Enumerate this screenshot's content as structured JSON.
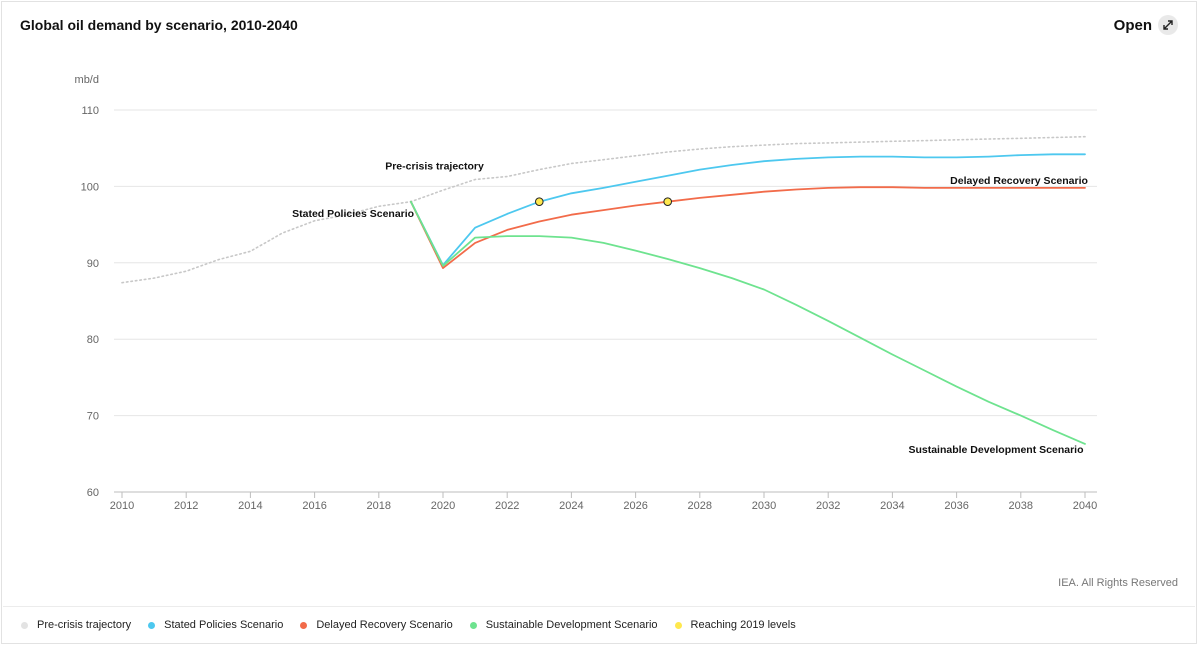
{
  "header": {
    "title": "Global oil demand by scenario, 2010-2040",
    "open_label": "Open",
    "open_icon": "expand-arrows-icon"
  },
  "credit": "IEA. All Rights Reserved",
  "chart_data": {
    "type": "line",
    "title": "Global oil demand by scenario, 2010-2040",
    "ylabel": "mb/d",
    "xlabel": "",
    "xlim": [
      2010,
      2040
    ],
    "ylim": [
      60,
      110
    ],
    "xticks": [
      2010,
      2012,
      2014,
      2016,
      2018,
      2020,
      2022,
      2024,
      2026,
      2028,
      2030,
      2032,
      2034,
      2036,
      2038,
      2040
    ],
    "yticks": [
      60,
      70,
      80,
      90,
      100,
      110
    ],
    "grid": "horizontal",
    "legend_position": "bottom",
    "series": [
      {
        "name": "Pre-crisis trajectory",
        "color": "#c8c8c8",
        "style": "dotted",
        "x": [
          2010,
          2011,
          2012,
          2013,
          2014,
          2015,
          2016,
          2017,
          2018,
          2019,
          2020,
          2021,
          2022,
          2023,
          2024,
          2025,
          2026,
          2027,
          2028,
          2029,
          2030,
          2031,
          2032,
          2033,
          2034,
          2035,
          2036,
          2037,
          2038,
          2039,
          2040
        ],
        "y": [
          87.4,
          88.0,
          88.9,
          90.4,
          91.5,
          93.9,
          95.5,
          96.3,
          97.4,
          98.0,
          99.5,
          100.9,
          101.3,
          102.2,
          103.0,
          103.5,
          104.0,
          104.5,
          104.9,
          105.2,
          105.4,
          105.6,
          105.7,
          105.8,
          105.9,
          106.0,
          106.1,
          106.2,
          106.3,
          106.4,
          106.5
        ]
      },
      {
        "name": "Stated Policies Scenario",
        "color": "#4dc8ef",
        "style": "solid",
        "x": [
          2019,
          2020,
          2021,
          2022,
          2023,
          2024,
          2025,
          2026,
          2027,
          2028,
          2029,
          2030,
          2031,
          2032,
          2033,
          2034,
          2035,
          2036,
          2037,
          2038,
          2039,
          2040
        ],
        "y": [
          98.0,
          89.7,
          94.6,
          96.4,
          98.0,
          99.1,
          99.8,
          100.6,
          101.4,
          102.2,
          102.8,
          103.3,
          103.6,
          103.8,
          103.9,
          103.9,
          103.8,
          103.8,
          103.9,
          104.1,
          104.2,
          104.2
        ]
      },
      {
        "name": "Delayed Recovery Scenario",
        "color": "#f26b4a",
        "style": "solid",
        "x": [
          2019,
          2020,
          2021,
          2022,
          2023,
          2024,
          2025,
          2026,
          2027,
          2028,
          2029,
          2030,
          2031,
          2032,
          2033,
          2034,
          2035,
          2036,
          2037,
          2038,
          2039,
          2040
        ],
        "y": [
          98.0,
          89.3,
          92.6,
          94.3,
          95.4,
          96.3,
          96.9,
          97.5,
          98.0,
          98.5,
          98.9,
          99.3,
          99.6,
          99.8,
          99.9,
          99.9,
          99.8,
          99.8,
          99.8,
          99.8,
          99.8,
          99.8
        ]
      },
      {
        "name": "Sustainable Development Scenario",
        "color": "#6ee38f",
        "style": "solid",
        "x": [
          2019,
          2020,
          2021,
          2022,
          2023,
          2024,
          2025,
          2026,
          2027,
          2028,
          2029,
          2030,
          2031,
          2032,
          2033,
          2034,
          2035,
          2036,
          2037,
          2038,
          2039,
          2040
        ],
        "y": [
          98.0,
          89.6,
          93.3,
          93.5,
          93.5,
          93.3,
          92.6,
          91.6,
          90.5,
          89.3,
          88.0,
          86.5,
          84.5,
          82.4,
          80.2,
          78.0,
          75.9,
          73.8,
          71.8,
          70.0,
          68.1,
          66.3
        ]
      }
    ],
    "markers": {
      "name": "Reaching 2019 levels",
      "color": "#ffe84d",
      "points": [
        {
          "x": 2023,
          "y": 98.0,
          "series": "Stated Policies Scenario"
        },
        {
          "x": 2027,
          "y": 98.0,
          "series": "Delayed Recovery Scenario"
        }
      ]
    },
    "annotations": [
      {
        "text": "Pre-crisis trajectory",
        "x": 2018.2,
        "y": 102.2
      },
      {
        "text": "Stated Policies Scenario",
        "x": 2015.3,
        "y": 96.0
      },
      {
        "text": "Delayed Recovery Scenario",
        "x": 2035.8,
        "y": 100.3
      },
      {
        "text": "Sustainable Development Scenario",
        "x": 2034.5,
        "y": 65.1
      }
    ]
  },
  "legend": [
    {
      "label": "Pre-crisis trajectory",
      "color": "#e3e3e3"
    },
    {
      "label": "Stated Policies Scenario",
      "color": "#4dc8ef"
    },
    {
      "label": "Delayed Recovery Scenario",
      "color": "#f26b4a"
    },
    {
      "label": "Sustainable Development Scenario",
      "color": "#6ee38f"
    },
    {
      "label": "Reaching 2019 levels",
      "color": "#ffe84d"
    }
  ]
}
